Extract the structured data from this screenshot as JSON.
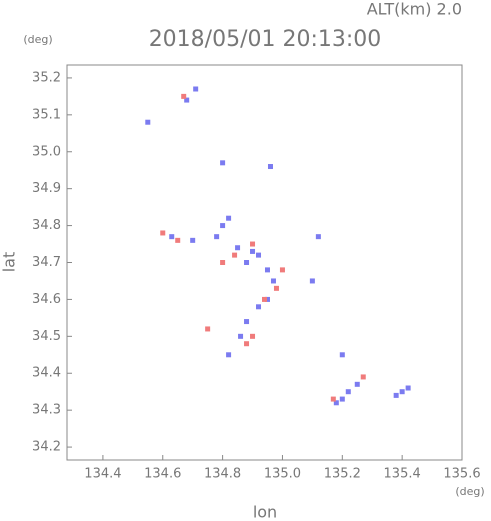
{
  "chart_data": {
    "type": "scatter",
    "title": "2018/05/01 20:13:00",
    "subtitle": "ALT(km) 2.0",
    "x_label": "lon",
    "y_label": "lat",
    "x_unit": "(deg)",
    "y_unit": "(deg)",
    "xlim": [
      134.28,
      135.6
    ],
    "ylim": [
      34.165,
      35.235
    ],
    "xticks": [
      134.4,
      134.6,
      134.8,
      {
        "value": 135,
        "label": "135.0"
      },
      135.2,
      135.4,
      135.6
    ],
    "yticks": [
      {
        "value": 34.2,
        "label": "34.2"
      },
      34.3,
      34.4,
      34.5,
      34.6,
      34.7,
      34.8,
      34.9,
      {
        "value": 35,
        "label": "35.0"
      },
      35.1,
      35.2
    ],
    "series": [
      {
        "name": "blue",
        "color": "#7b7bf0",
        "x": [
          134.55,
          134.68,
          134.71,
          134.8,
          134.96,
          134.82,
          134.8,
          134.78,
          134.63,
          134.7,
          134.85,
          134.9,
          134.92,
          134.88,
          134.95,
          134.97,
          134.95,
          134.92,
          134.88,
          134.86,
          134.82,
          135.12,
          135.1,
          135.2,
          135.22,
          135.2,
          135.25,
          135.18,
          135.4,
          135.42,
          135.38
        ],
        "y": [
          35.08,
          35.14,
          35.17,
          34.97,
          34.96,
          34.82,
          34.8,
          34.77,
          34.77,
          34.76,
          34.74,
          34.73,
          34.72,
          34.7,
          34.68,
          34.65,
          34.6,
          34.58,
          34.54,
          34.5,
          34.45,
          34.77,
          34.65,
          34.45,
          34.35,
          34.33,
          34.37,
          34.32,
          34.35,
          34.36,
          34.34
        ]
      },
      {
        "name": "red",
        "color": "#f07b7b",
        "x": [
          134.67,
          134.6,
          134.65,
          134.8,
          134.84,
          134.9,
          135.0,
          134.94,
          134.9,
          134.88,
          135.27,
          135.17,
          134.75,
          134.98
        ],
        "y": [
          35.15,
          34.78,
          34.76,
          34.7,
          34.72,
          34.75,
          34.68,
          34.6,
          34.5,
          34.48,
          34.39,
          34.33,
          34.52,
          34.63
        ]
      }
    ]
  }
}
